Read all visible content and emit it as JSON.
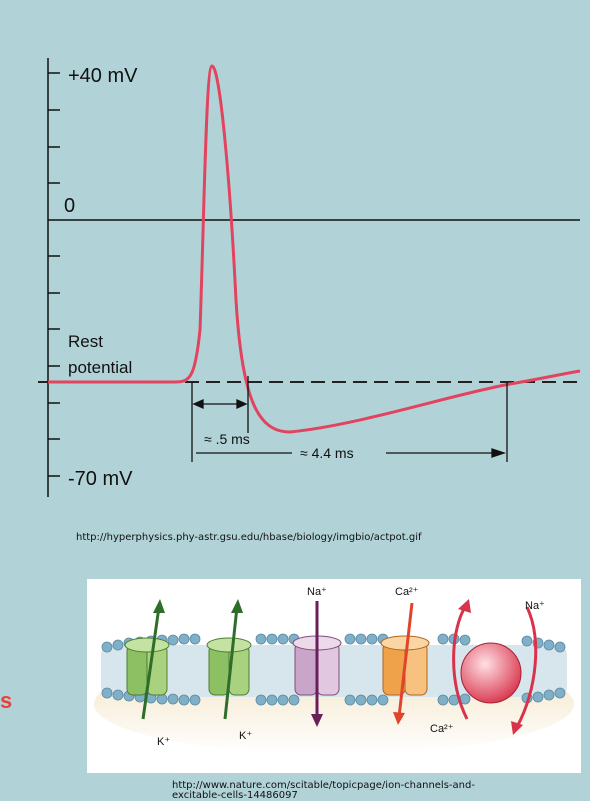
{
  "action_potential": {
    "labels": {
      "plus40": "+40 mV",
      "zero": "0",
      "rest_line1": "Rest",
      "rest_line2": "potential",
      "minus70": "-70 mV",
      "dur_short": "≈ .5 ms",
      "dur_long": "≈ 4.4 ms"
    },
    "colors": {
      "curve": "#e2445f",
      "axis": "#111111",
      "rest_dash": "#222222"
    },
    "source_url": "http://hyperphysics.phy-astr.gsu.edu/hbase/biology/imgbio/actpot.gif"
  },
  "membrane": {
    "channel_labels": {
      "k1": "K⁺",
      "k2": "K⁺",
      "na1": "Na⁺",
      "ca1": "Ca²⁺",
      "na2": "Na⁺",
      "ca2": "Ca²⁺"
    },
    "colors": {
      "k_channel": "#8cc063",
      "na_channel": "#c9a6c9",
      "ca_channel": "#f0a24a",
      "exchanger": "#e8485a",
      "k_arrow": "#2f6e2a",
      "na_arrow": "#6a1f58",
      "ca_arrow": "#e0452a",
      "lipid_head": "#7fb0c8"
    },
    "source_url": "http://www.nature.com/scitable/topicpage/ion-channels-and-excitable-cells-14486097"
  },
  "left_fragment": "s"
}
